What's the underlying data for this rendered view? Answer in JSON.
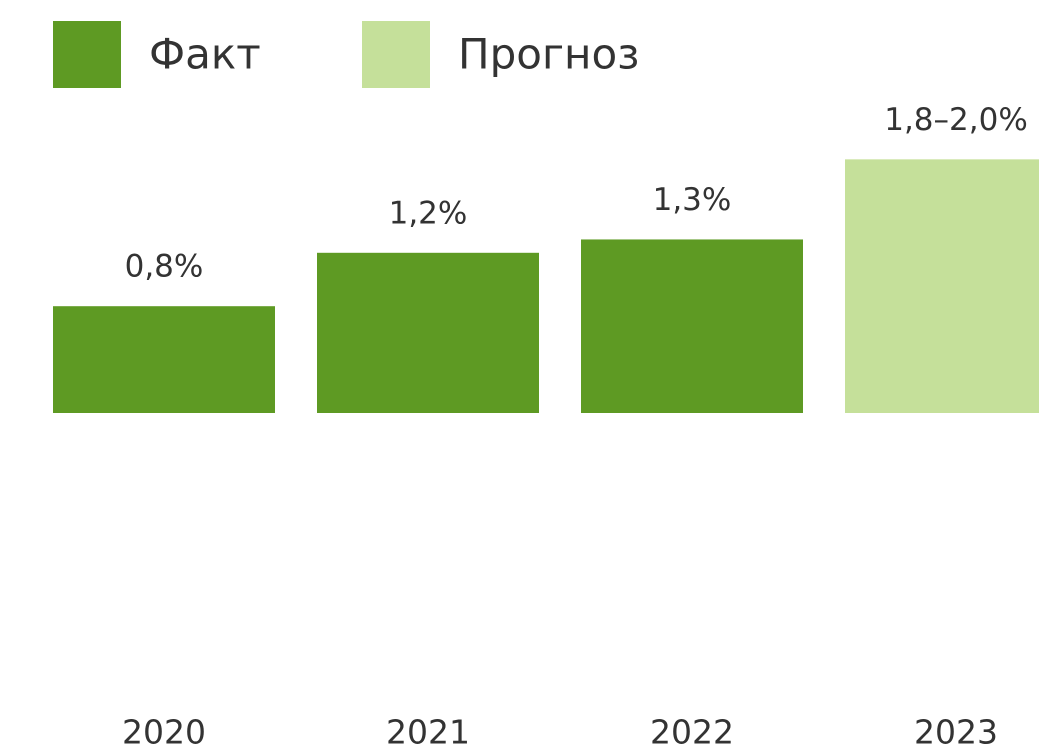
{
  "chart_data": {
    "type": "bar",
    "categories": [
      "2020",
      "2021",
      "2022",
      "2023"
    ],
    "series": [
      {
        "name": "Факт",
        "color": "#5e9a23",
        "values": [
          0.8,
          1.2,
          1.3,
          null
        ],
        "value_labels": [
          "0,8%",
          "1,2%",
          "1,3%",
          null
        ]
      },
      {
        "name": "Прогноз",
        "color": "#c5e09a",
        "values": [
          null,
          null,
          null,
          1.9
        ],
        "value_labels": [
          null,
          null,
          null,
          "1,8–2,0%"
        ]
      }
    ],
    "ylim": [
      -2,
      2
    ]
  }
}
